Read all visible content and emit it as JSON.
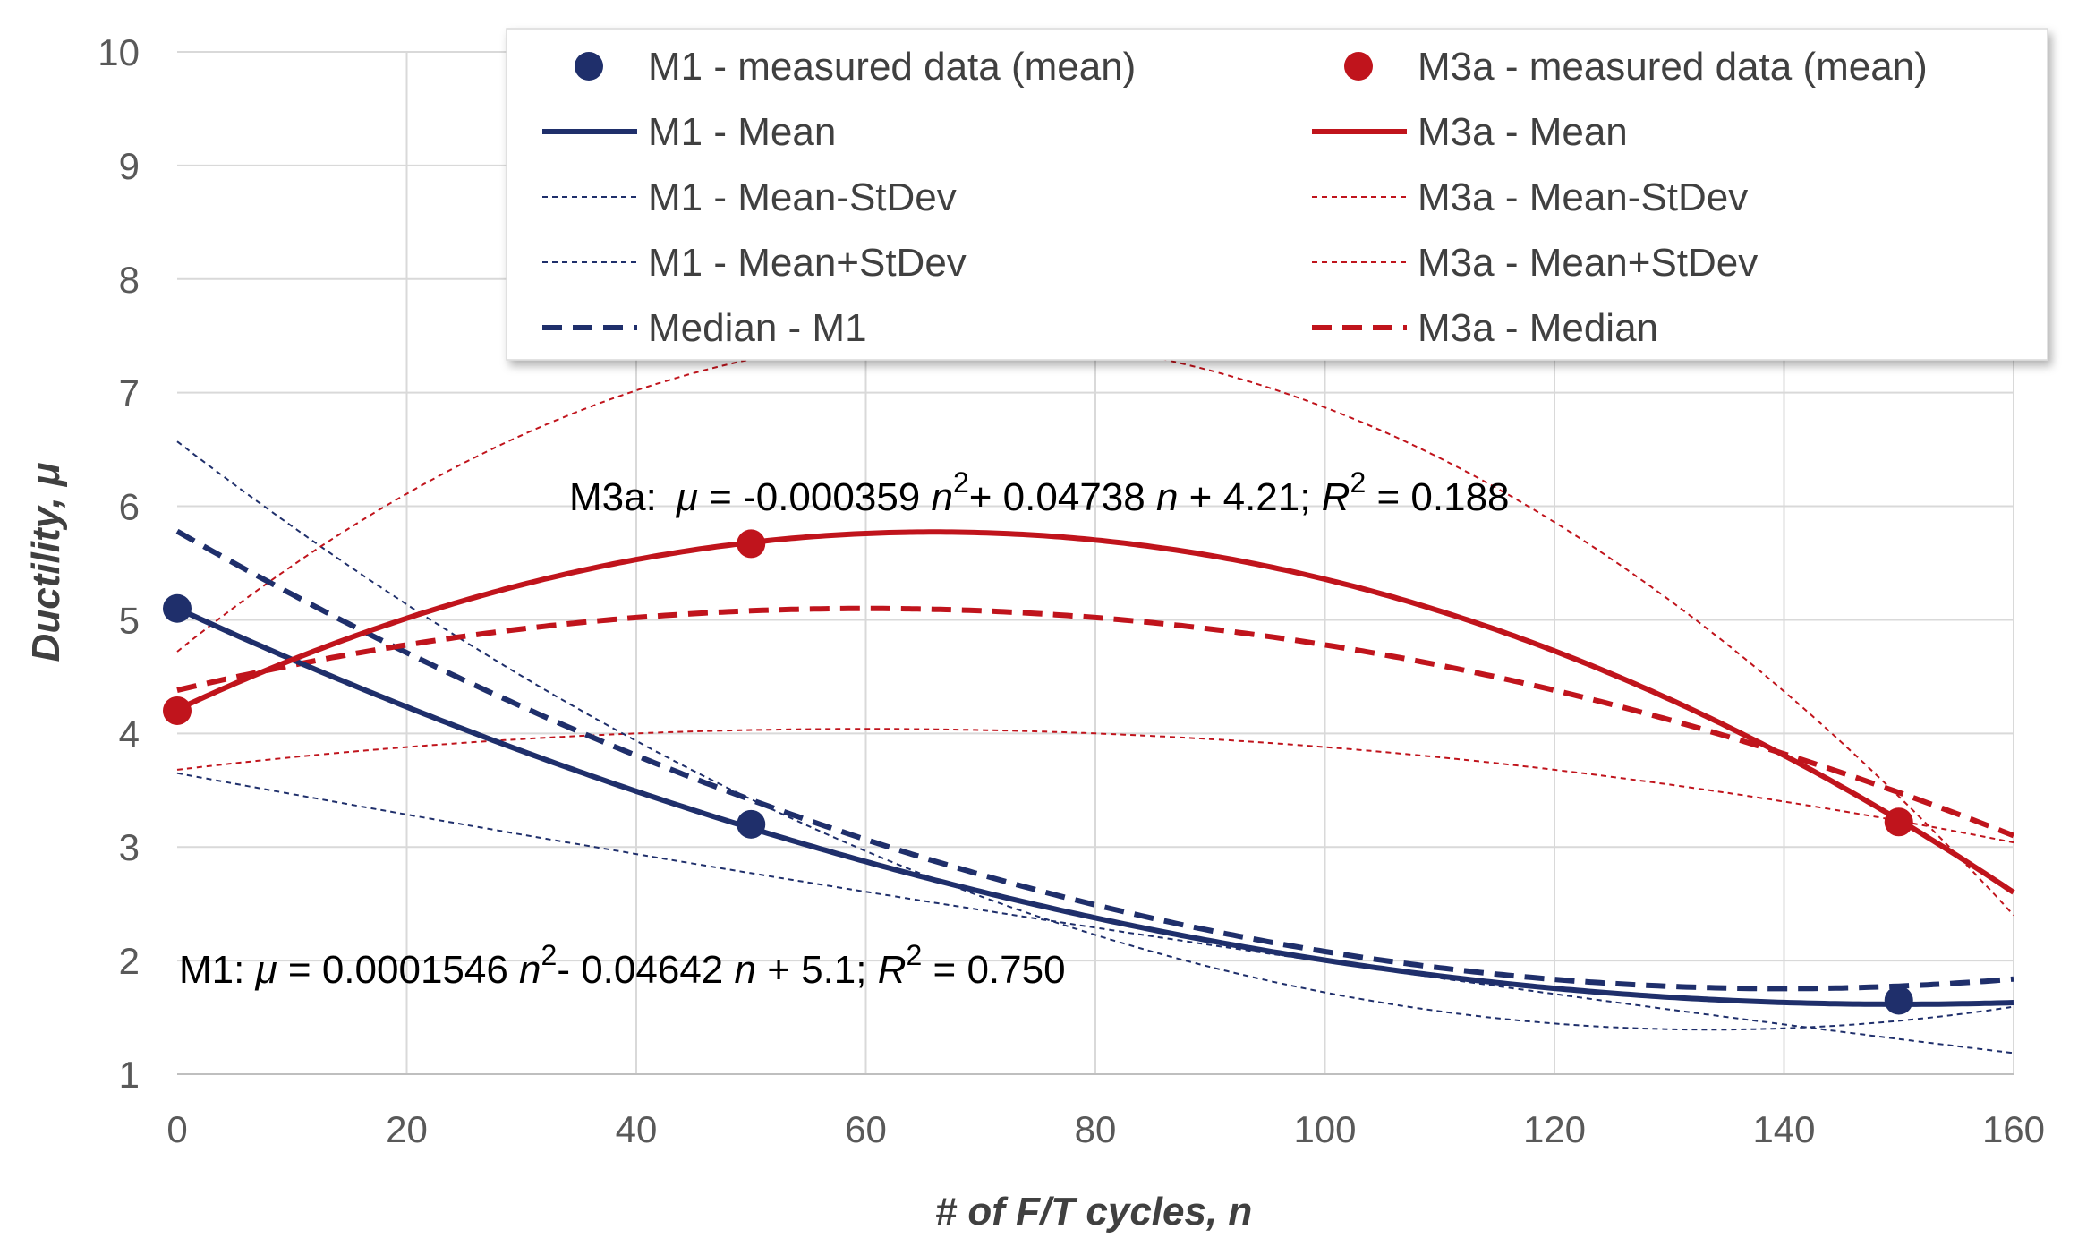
{
  "chart_data": {
    "type": "line",
    "title": "",
    "xlabel": "# of F/T cycles, n",
    "ylabel": "Ductility, μ",
    "xlim": [
      0,
      160
    ],
    "ylim": [
      1,
      10
    ],
    "xticks": [
      0,
      20,
      40,
      60,
      80,
      100,
      120,
      140,
      160
    ],
    "yticks": [
      1,
      2,
      3,
      4,
      5,
      6,
      7,
      8,
      9,
      10
    ],
    "grid": true,
    "legend_position": "top",
    "colors": {
      "M1": "#1f2f6b",
      "M3a": "#c0141c"
    },
    "series": [
      {
        "name": "M1 - measured data (mean)",
        "kind": "marker",
        "group": "M1",
        "x": [
          0,
          50,
          150
        ],
        "y": [
          5.1,
          3.2,
          1.65
        ]
      },
      {
        "name": "M3a - measured data (mean)",
        "kind": "marker",
        "group": "M3a",
        "x": [
          0,
          50,
          150
        ],
        "y": [
          4.2,
          5.67,
          3.22
        ]
      },
      {
        "name": "M1 - Mean",
        "kind": "solid",
        "group": "M1",
        "coef": [
          0.0001546,
          -0.04642,
          5.1
        ]
      },
      {
        "name": "M3a - Mean",
        "kind": "solid",
        "group": "M3a",
        "coef": [
          -0.000359,
          0.04738,
          4.21
        ]
      },
      {
        "name": "M1 - Mean-StDev",
        "kind": "thin",
        "group": "M1",
        "coef": [
          2e-05,
          -0.0186,
          3.65
        ]
      },
      {
        "name": "M3a - Mean-StDev",
        "kind": "thin",
        "group": "M3a",
        "coef": [
          -0.0001,
          0.012,
          3.68
        ]
      },
      {
        "name": "M1 - Mean+StDev",
        "kind": "thin",
        "group": "M1",
        "coef": [
          0.00029,
          -0.0775,
          6.57
        ]
      },
      {
        "name": "M3a - Mean+StDev",
        "kind": "thin",
        "group": "M3a",
        "coef": [
          -0.0006,
          0.0815,
          4.72
        ]
      },
      {
        "name": "Median - M1",
        "kind": "dashed",
        "group": "M1",
        "coef": [
          0.000206,
          -0.0576,
          5.78
        ]
      },
      {
        "name": "M3a - Median",
        "kind": "dashed",
        "group": "M3a",
        "coef": [
          -0.0002,
          0.024,
          4.38
        ]
      }
    ],
    "annotations": [
      {
        "id": "m3a",
        "label": "M3a:",
        "mu": "μ",
        "eq_a": " = -0.000359 ",
        "n1": "n",
        "sup": "2",
        "eq_b": "+ 0.04738 ",
        "n2": "n",
        "eq_c": " + 4.21; ",
        "r": "R",
        "eq_d": " = 0.188"
      },
      {
        "id": "m1",
        "label": "M1: ",
        "mu": "μ",
        "eq_a": " = 0.0001546 ",
        "n1": "n",
        "sup": "2",
        "eq_b": "- 0.04642 ",
        "n2": "n",
        "eq_c": " + 5.1; ",
        "r": "R",
        "eq_d": " = 0.750"
      }
    ]
  }
}
